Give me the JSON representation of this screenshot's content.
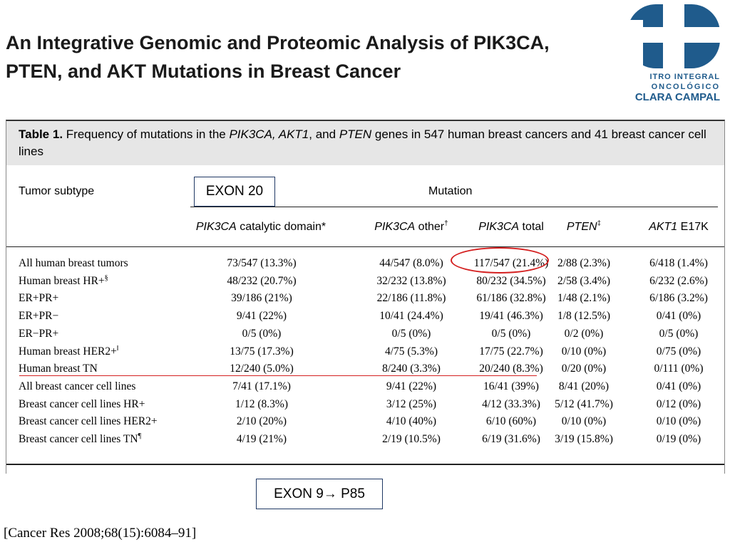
{
  "slide": {
    "title_line1": "An Integrative Genomic and Proteomic Analysis of PIK3CA,",
    "title_line2": "PTEN, and AKT Mutations in Breast Cancer",
    "citation": "[Cancer Res 2008;68(15):6084–91]"
  },
  "logo": {
    "line1": "ITRO INTEGRAL",
    "line2": "ONCOLÓGICO",
    "line3": "CLARA CAMPAL",
    "color": "#1f5b8c"
  },
  "table": {
    "caption_label": "Table 1.",
    "caption_text_a": " Frequency of mutations in the ",
    "caption_gene1": "PIK3CA, AKT1",
    "caption_text_b": ", and ",
    "caption_gene2": "PTEN",
    "caption_text_c": " genes in 547 human breast cancers and 41 breast cancer cell lines",
    "tumor_subtype_header": "Tumor subtype",
    "mutation_header": "Mutation",
    "columns": [
      {
        "gene": "PIK3CA",
        "rest": " catalytic domain*"
      },
      {
        "gene": "PIK3CA",
        "rest": " other",
        "sup": "†"
      },
      {
        "gene": "PIK3CA",
        "rest": " total"
      },
      {
        "gene": "PTEN",
        "rest": "",
        "sup": "‡"
      },
      {
        "gene": "AKT1",
        "rest": " E17K"
      }
    ],
    "rows": [
      {
        "label": "All human breast tumors",
        "sup": "",
        "v": [
          "73/547 (13.3%)",
          "44/547 (8.0%)",
          "117/547 (21.4%)",
          "2/88 (2.3%)",
          "6/418 (1.4%)"
        ]
      },
      {
        "label": "Human breast HR+",
        "sup": "§",
        "v": [
          "48/232 (20.7%)",
          "32/232 (13.8%)",
          "80/232  (34.5%)",
          "2/58 (3.4%)",
          "6/232 (2.6%)"
        ]
      },
      {
        "label": "ER+PR+",
        "sup": "",
        "v": [
          "39/186 (21%)",
          "22/186 (11.8%)",
          "61/186 (32.8%)",
          "1/48 (2.1%)",
          "6/186 (3.2%)"
        ]
      },
      {
        "label": "ER+PR−",
        "sup": "",
        "v": [
          "9/41 (22%)",
          "10/41 (24.4%)",
          "19/41 (46.3%)",
          "1/8 (12.5%)",
          "0/41 (0%)"
        ]
      },
      {
        "label": "ER−PR+",
        "sup": "",
        "v": [
          "0/5 (0%)",
          "0/5 (0%)",
          "0/5 (0%)",
          "0/2 (0%)",
          "0/5 (0%)"
        ]
      },
      {
        "label": "Human breast HER2+",
        "sup": "‖",
        "v": [
          "13/75 (17.3%)",
          "4/75 (5.3%)",
          "17/75 (22.7%)",
          "0/10 (0%)",
          "0/75 (0%)"
        ]
      },
      {
        "label": "Human breast TN",
        "sup": "",
        "v": [
          "12/240 (5.0%)",
          "8/240 (3.3%)",
          "20/240 (8.3%)",
          "0/20 (0%)",
          "0/111 (0%)"
        ]
      },
      {
        "label": "All breast cancer cell lines",
        "sup": "",
        "v": [
          "7/41 (17.1%)",
          "9/41 (22%)",
          "16/41 (39%)",
          "8/41 (20%)",
          "0/41 (0%)"
        ]
      },
      {
        "label": "Breast cancer cell lines HR+",
        "sup": "",
        "v": [
          "1/12 (8.3%)",
          "3/12 (25%)",
          "4/12 (33.3%)",
          "5/12 (41.7%)",
          "0/12 (0%)"
        ]
      },
      {
        "label": "Breast cancer cell lines HER2+",
        "sup": "",
        "v": [
          "2/10 (20%)",
          "4/10 (40%)",
          "6/10 (60%)",
          "0/10 (0%)",
          "0/10 (0%)"
        ]
      },
      {
        "label": "Breast cancer cell lines TN",
        "sup": "¶",
        "v": [
          "4/19 (21%)",
          "2/19 (10.5%)",
          "6/19 (31.6%)",
          "3/19 (15.8%)",
          "0/19 (0%)"
        ]
      }
    ]
  },
  "annotations": {
    "box1": "EXON 20",
    "box2": "EXON 9→ P85",
    "highlight_color": "#d42020"
  }
}
